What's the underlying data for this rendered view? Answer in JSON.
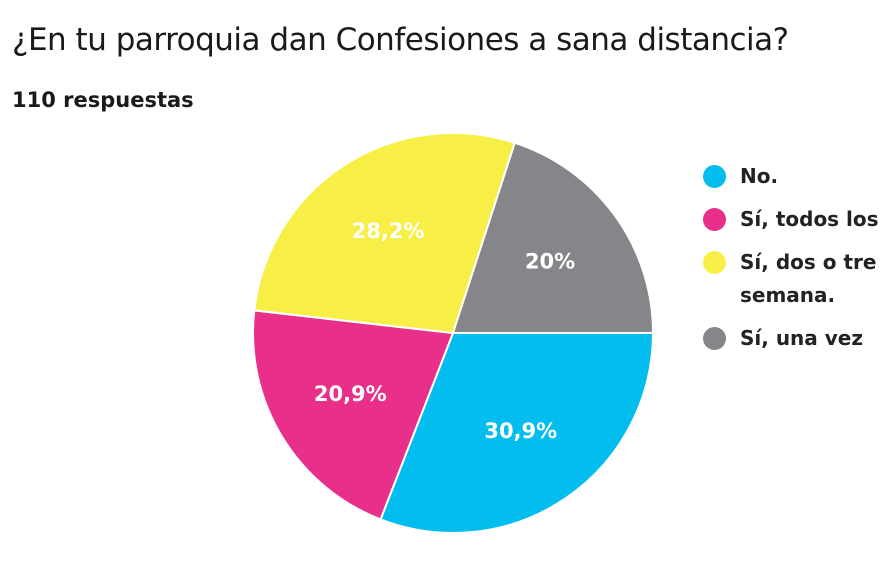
{
  "chart_data": {
    "type": "pie",
    "title": "¿En tu parroquia dan Confesiones a sana distancia?",
    "subtitle": "110 respuestas",
    "categories": [
      "No.",
      "Sí, todos los",
      "Sí, dos o tre semana.",
      "Sí, una vez"
    ],
    "values": [
      30.9,
      20.9,
      28.2,
      20
    ],
    "value_labels": [
      "30,9%",
      "20,9%",
      "28,2%",
      "20%"
    ],
    "colors": [
      "#03bdee",
      "#e8308b",
      "#f8ef46",
      "#86868a"
    ]
  }
}
